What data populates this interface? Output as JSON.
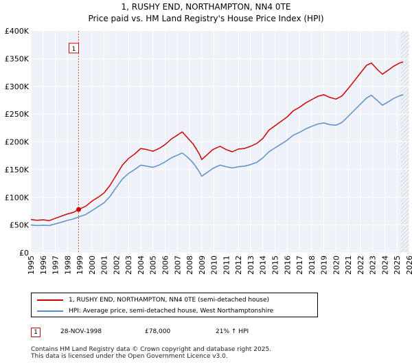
{
  "chart_data": {
    "type": "line",
    "title": "1, RUSHY END, NORTHAMPTON, NN4 0TE",
    "subtitle": "Price paid vs. HM Land Registry's House Price Index (HPI)",
    "xlim": [
      1995,
      2026
    ],
    "ylim": [
      0,
      400000
    ],
    "x_ticks": [
      "1995",
      "1996",
      "1997",
      "1998",
      "1999",
      "2000",
      "2001",
      "2002",
      "2003",
      "2004",
      "2005",
      "2006",
      "2007",
      "2008",
      "2009",
      "2010",
      "2011",
      "2012",
      "2013",
      "2014",
      "2015",
      "2016",
      "2017",
      "2018",
      "2019",
      "2020",
      "2021",
      "2022",
      "2023",
      "2024",
      "2025",
      "2026"
    ],
    "y_ticks": [
      0,
      50000,
      100000,
      150000,
      200000,
      250000,
      300000,
      350000,
      400000
    ],
    "y_tick_labels": [
      "£0",
      "£50K",
      "£100K",
      "£150K",
      "£200K",
      "£250K",
      "£300K",
      "£350K",
      "£400K"
    ],
    "grid": true,
    "projection_start_year": 2025.3,
    "series": [
      {
        "name": "1, RUSHY END, NORTHAMPTON, NN4 0TE (semi-detached house)",
        "color": "#cc0000",
        "points": [
          [
            1995.0,
            60000
          ],
          [
            1995.5,
            58500
          ],
          [
            1996.0,
            59500
          ],
          [
            1996.5,
            58000
          ],
          [
            1997.0,
            62000
          ],
          [
            1997.5,
            66000
          ],
          [
            1998.0,
            70000
          ],
          [
            1998.5,
            73000
          ],
          [
            1998.91,
            78000
          ],
          [
            1999.5,
            84000
          ],
          [
            2000.0,
            93000
          ],
          [
            2000.5,
            100000
          ],
          [
            2001.0,
            108000
          ],
          [
            2001.5,
            122000
          ],
          [
            2002.0,
            140000
          ],
          [
            2002.5,
            158000
          ],
          [
            2003.0,
            170000
          ],
          [
            2003.5,
            178000
          ],
          [
            2004.0,
            188000
          ],
          [
            2004.5,
            186000
          ],
          [
            2005.0,
            183000
          ],
          [
            2005.5,
            188000
          ],
          [
            2006.0,
            195000
          ],
          [
            2006.5,
            205000
          ],
          [
            2007.0,
            212000
          ],
          [
            2007.4,
            218000
          ],
          [
            2007.8,
            208000
          ],
          [
            2008.3,
            196000
          ],
          [
            2008.8,
            178000
          ],
          [
            2009.0,
            168000
          ],
          [
            2009.4,
            176000
          ],
          [
            2009.9,
            186000
          ],
          [
            2010.5,
            192000
          ],
          [
            2011.0,
            186000
          ],
          [
            2011.5,
            182000
          ],
          [
            2012.0,
            187000
          ],
          [
            2012.5,
            188000
          ],
          [
            2013.0,
            192000
          ],
          [
            2013.5,
            197000
          ],
          [
            2014.0,
            206000
          ],
          [
            2014.5,
            221000
          ],
          [
            2015.0,
            229000
          ],
          [
            2015.5,
            237000
          ],
          [
            2016.0,
            245000
          ],
          [
            2016.5,
            256000
          ],
          [
            2017.0,
            262000
          ],
          [
            2017.5,
            270000
          ],
          [
            2018.0,
            276000
          ],
          [
            2018.5,
            282000
          ],
          [
            2019.0,
            285000
          ],
          [
            2019.5,
            280000
          ],
          [
            2020.0,
            277000
          ],
          [
            2020.5,
            283000
          ],
          [
            2021.0,
            296000
          ],
          [
            2021.5,
            310000
          ],
          [
            2022.0,
            324000
          ],
          [
            2022.5,
            338000
          ],
          [
            2022.9,
            342000
          ],
          [
            2023.4,
            330000
          ],
          [
            2023.8,
            322000
          ],
          [
            2024.2,
            328000
          ],
          [
            2024.7,
            336000
          ],
          [
            2025.2,
            342000
          ],
          [
            2025.5,
            344000
          ]
        ]
      },
      {
        "name": "HPI: Average price, semi-detached house, West Northamptonshire",
        "color": "#5b8ec9",
        "points": [
          [
            1995.0,
            50000
          ],
          [
            1995.5,
            49000
          ],
          [
            1996.0,
            49500
          ],
          [
            1996.5,
            49000
          ],
          [
            1997.0,
            52000
          ],
          [
            1997.5,
            55000
          ],
          [
            1998.0,
            58500
          ],
          [
            1998.5,
            61000
          ],
          [
            1998.91,
            64500
          ],
          [
            1999.5,
            69000
          ],
          [
            2000.0,
            76000
          ],
          [
            2000.5,
            83000
          ],
          [
            2001.0,
            90000
          ],
          [
            2001.5,
            102000
          ],
          [
            2002.0,
            118000
          ],
          [
            2002.5,
            133000
          ],
          [
            2003.0,
            143000
          ],
          [
            2003.5,
            150000
          ],
          [
            2004.0,
            158000
          ],
          [
            2004.5,
            156000
          ],
          [
            2005.0,
            154000
          ],
          [
            2005.5,
            158000
          ],
          [
            2006.0,
            164000
          ],
          [
            2006.5,
            171000
          ],
          [
            2007.0,
            176000
          ],
          [
            2007.4,
            180000
          ],
          [
            2007.8,
            173000
          ],
          [
            2008.3,
            162000
          ],
          [
            2008.8,
            146000
          ],
          [
            2009.0,
            138000
          ],
          [
            2009.4,
            144000
          ],
          [
            2009.9,
            152000
          ],
          [
            2010.5,
            158000
          ],
          [
            2011.0,
            155000
          ],
          [
            2011.5,
            153000
          ],
          [
            2012.0,
            155000
          ],
          [
            2012.5,
            156000
          ],
          [
            2013.0,
            159000
          ],
          [
            2013.5,
            163000
          ],
          [
            2014.0,
            171000
          ],
          [
            2014.5,
            182000
          ],
          [
            2015.0,
            189000
          ],
          [
            2015.5,
            196000
          ],
          [
            2016.0,
            203000
          ],
          [
            2016.5,
            212000
          ],
          [
            2017.0,
            217000
          ],
          [
            2017.5,
            223000
          ],
          [
            2018.0,
            228000
          ],
          [
            2018.5,
            232000
          ],
          [
            2019.0,
            234000
          ],
          [
            2019.5,
            231000
          ],
          [
            2020.0,
            230000
          ],
          [
            2020.5,
            235000
          ],
          [
            2021.0,
            246000
          ],
          [
            2021.5,
            257000
          ],
          [
            2022.0,
            268000
          ],
          [
            2022.5,
            279000
          ],
          [
            2022.9,
            284000
          ],
          [
            2023.4,
            274000
          ],
          [
            2023.8,
            266000
          ],
          [
            2024.2,
            271000
          ],
          [
            2024.7,
            278000
          ],
          [
            2025.2,
            283000
          ],
          [
            2025.5,
            285000
          ]
        ]
      }
    ],
    "annotations": [
      {
        "label": "1",
        "x": 1998.91,
        "y": 78000,
        "label_y": 369000
      }
    ]
  },
  "legend": {
    "entries": [
      {
        "label": "1, RUSHY END, NORTHAMPTON, NN4 0TE (semi-detached house)",
        "color": "#cc0000"
      },
      {
        "label": "HPI: Average price, semi-detached house, West Northamptonshire",
        "color": "#5b8ec9"
      }
    ]
  },
  "sales": [
    {
      "badge": "1",
      "date": "28-NOV-1998",
      "price": "£78,000",
      "hpi_change": "21% ↑ HPI"
    }
  ],
  "footer": {
    "line1": "Contains HM Land Registry data © Crown copyright and database right 2025.",
    "line2": "This data is licensed under the Open Government Licence v3.0."
  }
}
